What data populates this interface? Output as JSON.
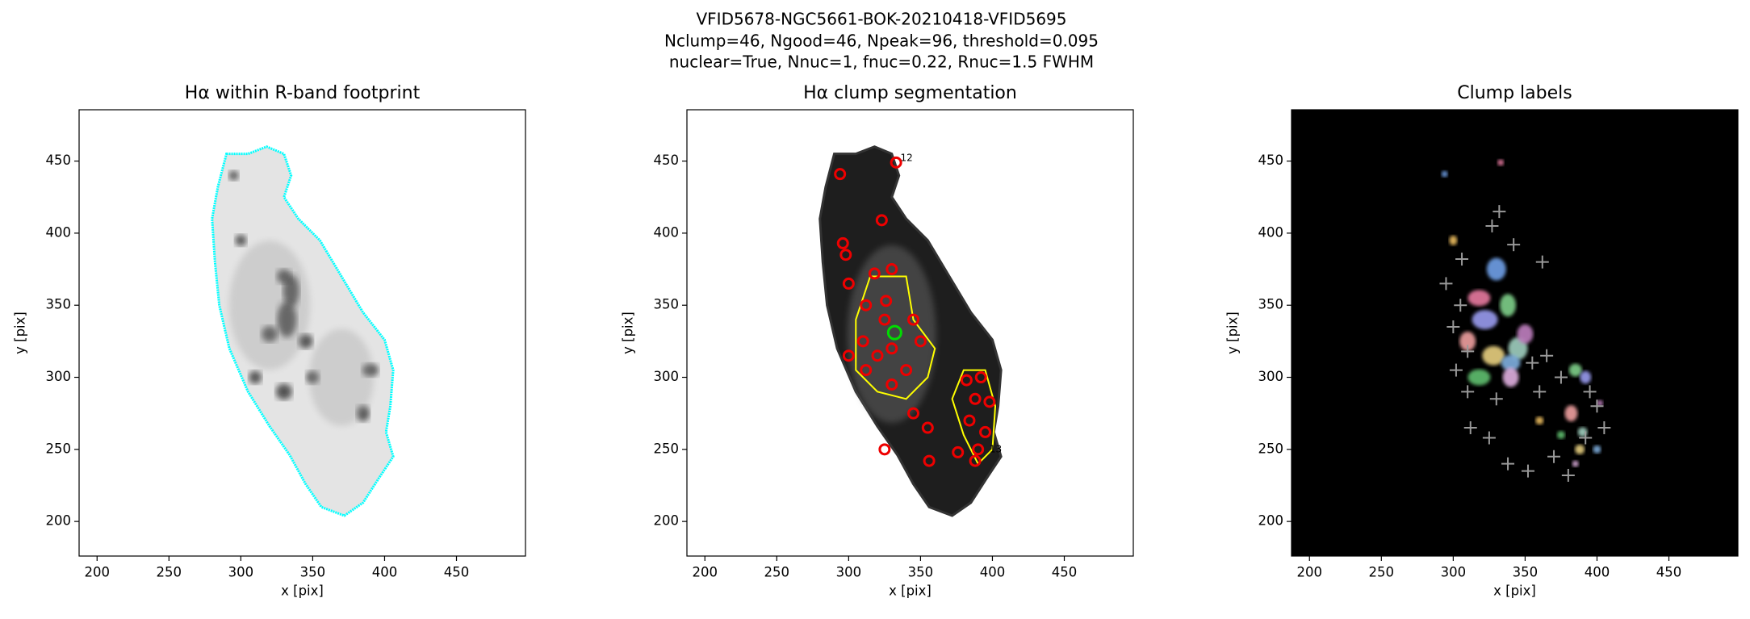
{
  "suptitle": [
    "VFID5678-NGC5661-BOK-20210418-VFID5695",
    "Nclump=46, Ngood=46, Npeak=96, threshold=0.095",
    "nuclear=True, Nnuc=1, fnuc=0.22, Rnuc=1.5 FWHM"
  ],
  "chart_data": [
    {
      "type": "image",
      "title": "Hα within R-band footprint",
      "xlabel": "x [pix]",
      "ylabel": "y [pix]",
      "xlim": [
        187.5,
        498
      ],
      "ylim": [
        176,
        485.6
      ],
      "xticks": [
        200,
        250,
        300,
        350,
        400,
        450
      ],
      "yticks": [
        200,
        250,
        300,
        350,
        400,
        450
      ]
    },
    {
      "type": "image",
      "title": "Hα clump segmentation",
      "xlabel": "x [pix]",
      "ylabel": "y [pix]",
      "xlim": [
        187.5,
        498
      ],
      "ylim": [
        176,
        485.6
      ],
      "xticks": [
        200,
        250,
        300,
        350,
        400,
        450
      ],
      "yticks": [
        200,
        250,
        300,
        350,
        400,
        450
      ],
      "annotations": [
        "12",
        "13"
      ]
    },
    {
      "type": "image",
      "title": "Clump labels",
      "xlabel": "x [pix]",
      "ylabel": "y [pix]",
      "xlim": [
        187.5,
        498
      ],
      "ylim": [
        176,
        485.6
      ],
      "xticks": [
        200,
        250,
        300,
        350,
        400,
        450
      ],
      "yticks": [
        200,
        250,
        300,
        350,
        400,
        450
      ]
    }
  ]
}
